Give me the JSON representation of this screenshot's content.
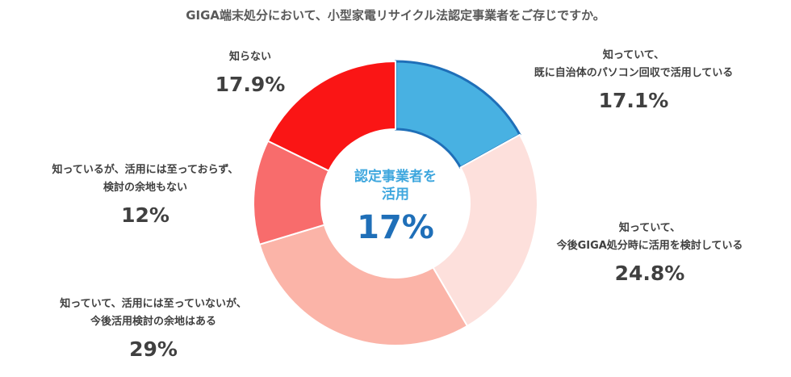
{
  "chart_data": {
    "type": "pie",
    "title": "GIGA端末処分において、小型家電リサイクル法認定事業者をご存じですか。",
    "center_text": [
      "認定事業者を",
      "活用"
    ],
    "center_value": "17%",
    "slices": [
      {
        "label": [
          "知っていて、",
          "既に自治体のパソコン回収で活用している"
        ],
        "value": 17.1,
        "value_label": "17.1%",
        "color": "#48b1e2"
      },
      {
        "label": [
          "知っていて、",
          "今後GIGA処分時に活用を検討している"
        ],
        "value": 24.8,
        "value_label": "24.8%",
        "color": "#fde0dc"
      },
      {
        "label": [
          "知っていて、活用には至っていないが、",
          "今後活用検討の余地はある"
        ],
        "value": 29,
        "value_label": "29%",
        "color": "#fbb4a8"
      },
      {
        "label": [
          "知っているが、活用には至っておらず、",
          "検討の余地もない"
        ],
        "value": 12,
        "value_label": "12%",
        "color": "#f86c6c"
      },
      {
        "label": [
          "知らない"
        ],
        "value": 17.9,
        "value_label": "17.9%",
        "color": "#fa1515"
      }
    ],
    "highlight_color": "#1f6fb8"
  }
}
